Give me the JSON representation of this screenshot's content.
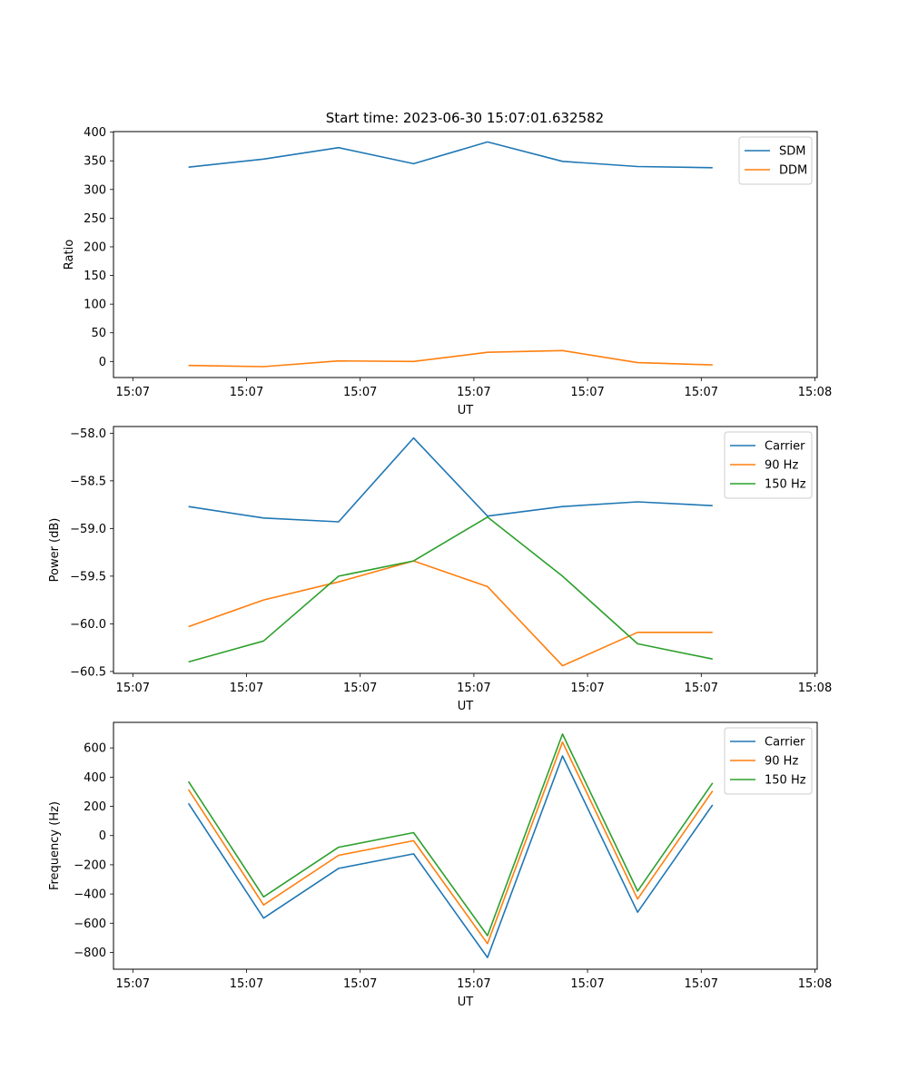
{
  "figure": {
    "title": "Start time: 2023-06-30 15:07:01.632582"
  },
  "colors": {
    "blue": "#1f77b4",
    "orange": "#ff7f0e",
    "green": "#2ca02c",
    "axes": "#000000",
    "legend_border": "#cccccc"
  },
  "chart_data": [
    {
      "type": "line",
      "title": "Start time: 2023-06-30 15:07:01.632582",
      "xlabel": "UT",
      "ylabel": "Ratio",
      "x_tick_labels": [
        "15:07",
        "15:07",
        "15:07",
        "15:07",
        "15:07",
        "15:07",
        "15:08"
      ],
      "x_ticks": [
        0,
        1,
        2,
        3,
        4,
        5,
        6
      ],
      "xlim": [
        -0.17,
        6.02
      ],
      "ylim": [
        -28,
        401
      ],
      "y_ticks": [
        0,
        50,
        100,
        150,
        200,
        250,
        300,
        350,
        400
      ],
      "y_tick_labels": [
        "0",
        "50",
        "100",
        "150",
        "200",
        "250",
        "300",
        "350",
        "400"
      ],
      "legend": "top-right",
      "grid": false,
      "x": [
        0.49,
        1.15,
        1.81,
        2.47,
        3.12,
        3.78,
        4.44,
        5.1
      ],
      "series": [
        {
          "name": "SDM",
          "color": "#1f77b4",
          "values": [
            339,
            353,
            373,
            345,
            383,
            349,
            340,
            338
          ]
        },
        {
          "name": "DDM",
          "color": "#ff7f0e",
          "values": [
            -7,
            -9,
            1,
            0,
            16,
            19,
            -2,
            -6
          ]
        }
      ]
    },
    {
      "type": "line",
      "title": "",
      "xlabel": "UT",
      "ylabel": "Power (dB)",
      "x_tick_labels": [
        "15:07",
        "15:07",
        "15:07",
        "15:07",
        "15:07",
        "15:07",
        "15:08"
      ],
      "x_ticks": [
        0,
        1,
        2,
        3,
        4,
        5,
        6
      ],
      "xlim": [
        -0.17,
        6.02
      ],
      "ylim": [
        -60.52,
        -57.93
      ],
      "y_ticks": [
        -60.5,
        -60.0,
        -59.5,
        -59.0,
        -58.5,
        -58.0
      ],
      "y_tick_labels": [
        "−60.5",
        "−60.0",
        "−59.5",
        "−59.0",
        "−58.5",
        "−58.0"
      ],
      "legend": "top-right",
      "grid": false,
      "x": [
        0.49,
        1.15,
        1.81,
        2.47,
        3.12,
        3.78,
        4.44,
        5.1
      ],
      "series": [
        {
          "name": "Carrier",
          "color": "#1f77b4",
          "values": [
            -58.77,
            -58.89,
            -58.93,
            -58.05,
            -58.87,
            -58.77,
            -58.72,
            -58.76
          ]
        },
        {
          "name": "90 Hz",
          "color": "#ff7f0e",
          "values": [
            -60.03,
            -59.75,
            -59.56,
            -59.34,
            -59.61,
            -60.44,
            -60.09,
            -60.09
          ]
        },
        {
          "name": "150 Hz",
          "color": "#2ca02c",
          "values": [
            -60.4,
            -60.18,
            -59.5,
            -59.34,
            -58.88,
            -59.5,
            -60.21,
            -60.37
          ]
        }
      ]
    },
    {
      "type": "line",
      "title": "",
      "xlabel": "UT",
      "ylabel": "Frequency (Hz)",
      "x_tick_labels": [
        "15:07",
        "15:07",
        "15:07",
        "15:07",
        "15:07",
        "15:07",
        "15:08"
      ],
      "x_ticks": [
        0,
        1,
        2,
        3,
        4,
        5,
        6
      ],
      "xlim": [
        -0.17,
        6.02
      ],
      "ylim": [
        -915,
        775
      ],
      "y_ticks": [
        -800,
        -600,
        -400,
        -200,
        0,
        200,
        400,
        600
      ],
      "y_tick_labels": [
        "−800",
        "−600",
        "−400",
        "−200",
        "0",
        "200",
        "400",
        "600"
      ],
      "legend": "top-right",
      "grid": false,
      "x": [
        0.49,
        1.15,
        1.81,
        2.47,
        3.12,
        3.78,
        4.44,
        5.1
      ],
      "series": [
        {
          "name": "Carrier",
          "color": "#1f77b4",
          "values": [
            220,
            -565,
            -225,
            -125,
            -835,
            545,
            -525,
            210
          ]
        },
        {
          "name": "90 Hz",
          "color": "#ff7f0e",
          "values": [
            315,
            -475,
            -135,
            -35,
            -740,
            640,
            -435,
            305
          ]
        },
        {
          "name": "150 Hz",
          "color": "#2ca02c",
          "values": [
            370,
            -420,
            -80,
            20,
            -685,
            695,
            -380,
            360
          ]
        }
      ]
    }
  ]
}
